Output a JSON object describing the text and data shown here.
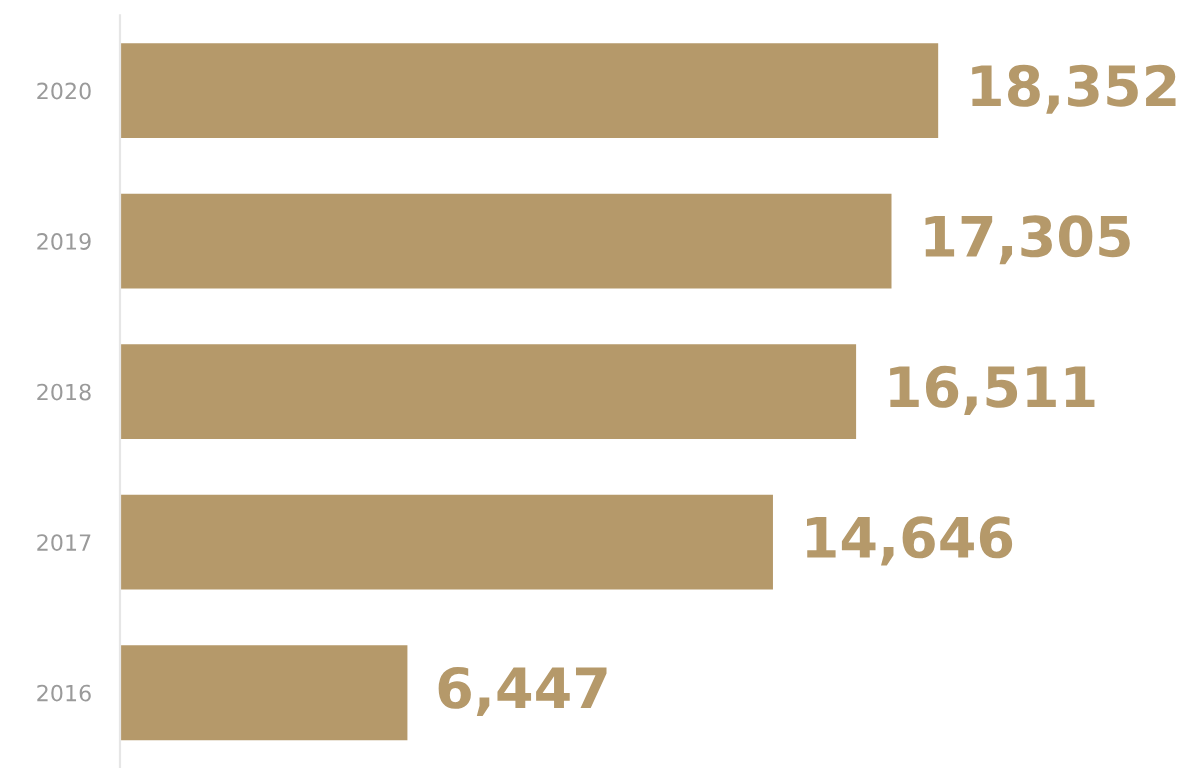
{
  "chart_data": {
    "type": "bar",
    "orientation": "horizontal",
    "categories": [
      "2020",
      "2019",
      "2018",
      "2017",
      "2016"
    ],
    "values": [
      18352,
      17305,
      16511,
      14646,
      6447
    ],
    "value_labels": [
      "18,352",
      "17,305",
      "16,511",
      "14,646",
      "6,447"
    ],
    "color": "#b5996a",
    "grid": false,
    "legend": false
  }
}
